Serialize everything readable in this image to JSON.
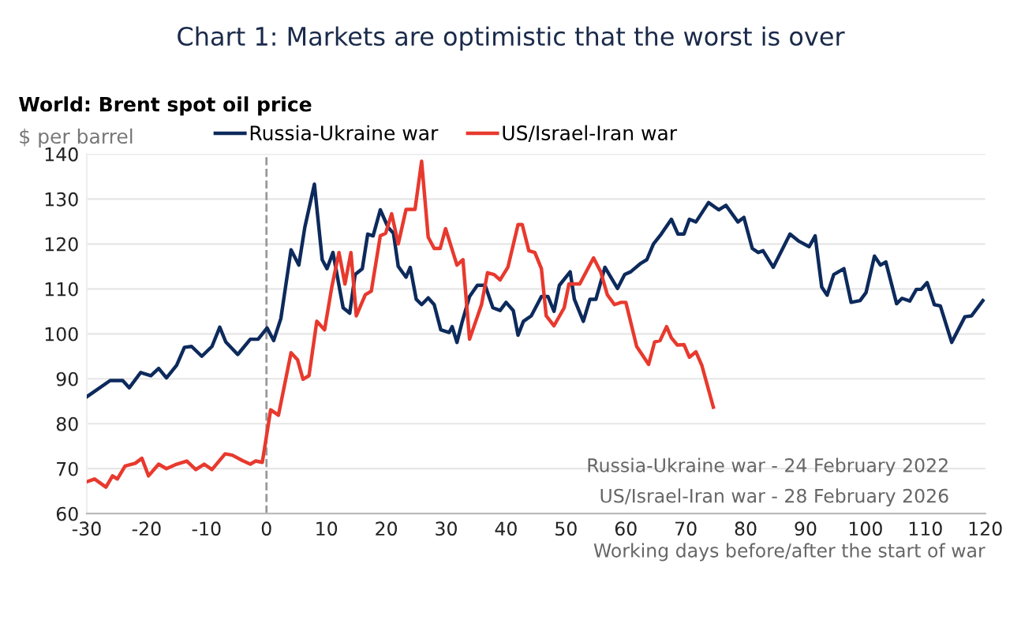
{
  "chart_data": {
    "type": "line",
    "title": "Chart 1: Markets are optimistic that the worst is over",
    "subtitle": "World: Brent spot oil price",
    "ylabel": "$ per barrel",
    "xlabel": "Working days before/after the start of war",
    "series": [
      {
        "name": "Russia-Ukraine war",
        "color": "#0d2a5c",
        "x": [
          -30,
          -26.1,
          -24,
          -22.9,
          -21,
          -19.3,
          -18,
          -16.7,
          -15,
          -13.7,
          -12.5,
          -10.8,
          -9.1,
          -7.8,
          -6.8,
          -4.8,
          -2.7,
          -1.4,
          0.1,
          1.2,
          2.4,
          4.1,
          5.4,
          6.4,
          8,
          9.3,
          10.1,
          11.1,
          12.2,
          12.8,
          13.9,
          14.8,
          16,
          16.9,
          17.8,
          19,
          20.3,
          21.2,
          22,
          23.3,
          24,
          25,
          25.9,
          27,
          28,
          29.1,
          30.5,
          31,
          31.8,
          32.7,
          33.9,
          35.2,
          36.5,
          37.8,
          39,
          40,
          41.2,
          42,
          42.9,
          44.2,
          45.9,
          47,
          48,
          48.9,
          50.7,
          51.4,
          52.9,
          54,
          55,
          56.5,
          58.6,
          59.8,
          60.8,
          62.5,
          63.5,
          64.6,
          65.9,
          67.6,
          68.7,
          69.7,
          70.6,
          71.7,
          73.8,
          75.5,
          76.7,
          78.7,
          79.7,
          81.1,
          82.1,
          82.9,
          84.6,
          87.4,
          88.9,
          90.6,
          91.6,
          92.7,
          93.6,
          94.7,
          96.4,
          97.6,
          99.1,
          100.1,
          101.5,
          102.5,
          103.4,
          105.2,
          106.1,
          107.4,
          108.5,
          109.3,
          110.3,
          111.5,
          112.5,
          114.4,
          116.6,
          117.7,
          119.6
        ],
        "values": [
          86,
          89.6,
          89.6,
          88,
          91.4,
          90.7,
          92.3,
          90.2,
          93,
          97,
          97.2,
          95,
          97.2,
          101.5,
          98.2,
          95.4,
          98.8,
          98.8,
          101.3,
          98.5,
          103.4,
          118.7,
          115.3,
          123.7,
          133.3,
          116.5,
          114.5,
          118.1,
          110.1,
          105.8,
          104.6,
          113.2,
          114.5,
          122.2,
          121.8,
          127.6,
          123.7,
          122.4,
          115,
          112.6,
          114.8,
          107.7,
          106.5,
          108,
          106.5,
          100.9,
          100.3,
          101.6,
          98.1,
          102.8,
          108.3,
          110.8,
          110.8,
          105.8,
          105.2,
          107,
          105.2,
          99.7,
          102.8,
          104,
          108.3,
          108.3,
          105,
          110.8,
          113.8,
          107.7,
          102.8,
          107.7,
          107.7,
          114.8,
          110.1,
          113.2,
          113.8,
          115.7,
          116.5,
          120,
          122.2,
          125.5,
          122.2,
          122.2,
          125.5,
          124.9,
          129.2,
          127.6,
          128.6,
          124.9,
          125.9,
          119,
          118.1,
          118.5,
          114.8,
          122.2,
          120.6,
          119.4,
          121.8,
          110.4,
          108.6,
          113.2,
          114.5,
          107,
          107.4,
          109.2,
          117.3,
          115.3,
          116,
          106.7,
          107.9,
          107.3,
          109.9,
          109.9,
          111.4,
          106.5,
          106.2,
          98.1,
          103.8,
          104,
          107.4
        ]
      },
      {
        "name": "US/Israel-Iran war",
        "color": "#e8392e",
        "x": [
          -30,
          -28.7,
          -26.8,
          -25.7,
          -24.9,
          -23.6,
          -21.9,
          -20.8,
          -19.7,
          -18,
          -16.7,
          -15,
          -13.3,
          -11.8,
          -10.4,
          -9.1,
          -6.9,
          -5.7,
          -4,
          -2.7,
          -1.8,
          -0.7,
          0.7,
          2,
          4.1,
          5.2,
          6.1,
          7.1,
          8.4,
          9.7,
          10.9,
          12.1,
          13.1,
          14.1,
          15,
          16.5,
          17.5,
          19,
          19.9,
          20.9,
          22,
          23.3,
          24.8,
          25.9,
          27,
          28,
          29,
          29.9,
          31.8,
          32.8,
          33.9,
          35.2,
          35.9,
          36.9,
          38,
          39,
          40.3,
          42,
          42.7,
          43.8,
          44.8,
          45.9,
          46.7,
          48,
          49.7,
          50.5,
          52.3,
          54.6,
          55.8,
          56.9,
          58.1,
          59.2,
          60,
          61.8,
          63.8,
          64.8,
          65.7,
          66.8,
          67.6,
          68.6,
          69.7,
          70.6,
          71.7,
          72.7,
          74.6
        ],
        "values": [
          67.1,
          67.7,
          65.9,
          68.4,
          67.7,
          70.6,
          71.2,
          72.3,
          68.4,
          71,
          70,
          71,
          71.7,
          69.8,
          71,
          69.8,
          73.3,
          73,
          71.8,
          71,
          71.7,
          71.4,
          83.1,
          81.9,
          95.8,
          94.2,
          89.9,
          90.7,
          102.8,
          100.9,
          110.4,
          118.1,
          111.1,
          118.1,
          104,
          108.7,
          109.5,
          121.8,
          122.4,
          126.7,
          120,
          127.7,
          127.7,
          138.4,
          121.5,
          119,
          119,
          123.4,
          115.3,
          116.5,
          98.8,
          103.8,
          106.5,
          113.6,
          113.2,
          112,
          114.8,
          124.3,
          124.3,
          118.5,
          118.1,
          114.5,
          104,
          101.8,
          105.8,
          111.1,
          111.1,
          116.9,
          113.8,
          108.7,
          106.5,
          107,
          107,
          97.2,
          93.2,
          98.2,
          98.5,
          101.6,
          99.1,
          97.5,
          97.6,
          94.8,
          96,
          92.9,
          83.7
        ]
      }
    ],
    "xlim": [
      -30,
      120
    ],
    "ylim": [
      60,
      140
    ],
    "xticks": [
      -30,
      -20,
      -10,
      0,
      10,
      20,
      30,
      40,
      50,
      60,
      70,
      80,
      90,
      100,
      110,
      120
    ],
    "yticks": [
      60,
      70,
      80,
      90,
      100,
      110,
      120,
      130,
      140
    ],
    "ref_lines": [
      {
        "axis": "x",
        "value": 0,
        "color": "#999999",
        "line_style": "dashed"
      }
    ],
    "annotations": [
      "Russia-Ukraine war - 24 February 2022",
      "US/Israel-Iran war - 28 February 2026"
    ],
    "grid": "y",
    "legend": "top",
    "marker": "none",
    "line_style": "solid"
  }
}
